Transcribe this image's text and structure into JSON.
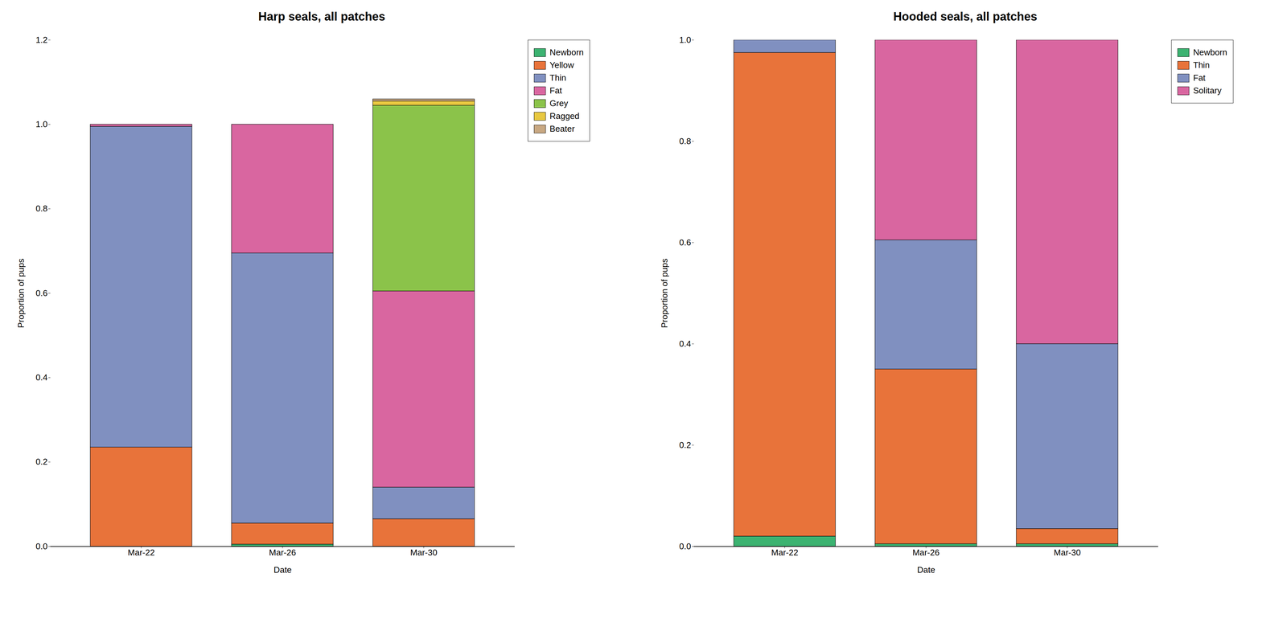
{
  "chart_data": [
    {
      "type": "bar",
      "stacked": true,
      "title": "Harp seals, all patches",
      "categories": [
        "Mar-22",
        "Mar-26",
        "Mar-30"
      ],
      "series": [
        {
          "name": "Newborn",
          "color": "#3cb371",
          "values": [
            0.0,
            0.005,
            0.0
          ]
        },
        {
          "name": "Yellow",
          "color": "#e8733a",
          "values": [
            0.235,
            0.05,
            0.065
          ]
        },
        {
          "name": "Thin",
          "color": "#8090c0",
          "values": [
            0.76,
            0.64,
            0.075
          ]
        },
        {
          "name": "Fat",
          "color": "#d966a0",
          "values": [
            0.005,
            0.305,
            0.465
          ]
        },
        {
          "name": "Grey",
          "color": "#8bc34a",
          "values": [
            0.0,
            0.0,
            0.44
          ]
        },
        {
          "name": "Ragged",
          "color": "#e8c840",
          "values": [
            0.0,
            0.0,
            0.01
          ]
        },
        {
          "name": "Beater",
          "color": "#c8a882",
          "values": [
            0.0,
            0.0,
            0.005
          ]
        }
      ],
      "xlabel": "Date",
      "ylabel": "Proportion of pups",
      "ylim": [
        0,
        1.2
      ],
      "yticks": [
        {
          "value": 0,
          "label": "0.0"
        },
        0.2,
        0.4,
        0.6,
        0.8,
        {
          "value": 1,
          "label": "1.0"
        },
        1.2
      ],
      "grid": false,
      "legend": "upper right"
    },
    {
      "type": "bar",
      "stacked": true,
      "title": "Hooded seals, all patches",
      "categories": [
        "Mar-22",
        "Mar-26",
        "Mar-30"
      ],
      "series": [
        {
          "name": "Newborn",
          "color": "#3cb371",
          "values": [
            0.02,
            0.005,
            0.005
          ]
        },
        {
          "name": "Thin",
          "color": "#e8733a",
          "values": [
            0.955,
            0.345,
            0.03
          ]
        },
        {
          "name": "Fat",
          "color": "#8090c0",
          "values": [
            0.025,
            0.255,
            0.365
          ]
        },
        {
          "name": "Solitary",
          "color": "#d966a0",
          "values": [
            0.0,
            0.395,
            0.6
          ]
        }
      ],
      "xlabel": "Date",
      "ylabel": "Proportion of pups",
      "ylim": [
        0,
        1.0
      ],
      "yticks": [
        {
          "value": 0,
          "label": "0.0"
        },
        0.2,
        0.4,
        0.6,
        0.8,
        {
          "value": 1,
          "label": "1.0"
        }
      ],
      "grid": false,
      "legend": "upper right"
    }
  ]
}
